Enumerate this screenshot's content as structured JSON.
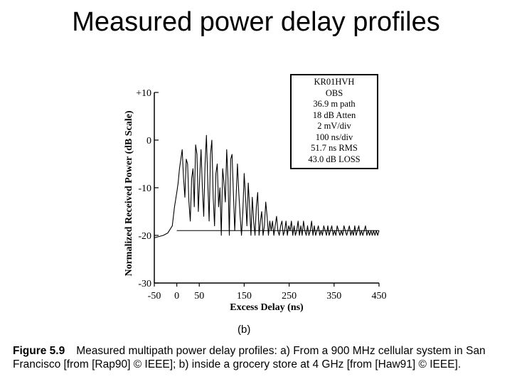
{
  "slide": {
    "title": "Measured power delay profiles"
  },
  "chart_data": {
    "type": "line",
    "xlabel": "Excess Delay (ns)",
    "ylabel": "Normalized Received Power (dB Scale)",
    "xlim": [
      -50,
      450
    ],
    "ylim": [
      -30,
      10
    ],
    "x_ticks": [
      {
        "value": -50,
        "label": "-50"
      },
      {
        "value": 0,
        "label": "0"
      },
      {
        "value": 50,
        "label": "50"
      },
      {
        "value": 150,
        "label": "150"
      },
      {
        "value": 250,
        "label": "250"
      },
      {
        "value": 350,
        "label": "350"
      },
      {
        "value": 450,
        "label": "450"
      }
    ],
    "y_ticks": [
      {
        "value": 10,
        "label": "+10"
      },
      {
        "value": 0,
        "label": "0"
      },
      {
        "value": -10,
        "label": "-10"
      },
      {
        "value": -20,
        "label": "-20"
      },
      {
        "value": -30,
        "label": "-30"
      }
    ],
    "threshold_db": -19,
    "series": [
      {
        "x": [
          -50,
          -30,
          -20,
          -10,
          -5,
          0,
          3,
          6,
          9,
          12,
          15,
          18,
          21,
          24,
          27,
          30,
          33,
          36,
          39,
          42,
          45,
          48,
          51,
          54,
          57,
          60,
          63,
          66,
          69,
          72,
          75,
          78,
          81,
          84,
          87,
          90,
          93,
          96,
          99,
          102,
          105,
          108,
          111,
          114,
          117,
          120,
          123,
          126,
          129,
          132,
          135,
          138,
          141,
          144,
          147,
          150,
          153,
          156,
          159,
          162,
          165,
          168,
          171,
          174,
          177,
          180,
          183,
          186,
          189,
          192,
          195,
          198,
          201,
          204,
          207,
          210,
          213,
          216,
          219,
          222,
          225,
          228,
          231,
          234,
          237,
          240,
          243,
          246,
          249,
          252,
          255,
          258,
          261,
          264,
          267,
          270,
          273,
          276,
          279,
          282,
          285,
          288,
          291,
          294,
          297,
          300,
          303,
          306,
          309,
          312,
          315,
          318,
          321,
          324,
          327,
          330,
          333,
          336,
          339,
          342,
          345,
          348,
          351,
          354,
          357,
          360,
          363,
          366,
          369,
          372,
          375,
          378,
          381,
          384,
          387,
          390,
          393,
          396,
          399,
          402,
          405,
          408,
          411,
          414,
          417,
          420,
          423,
          426,
          429,
          432,
          435,
          438,
          441,
          444,
          447,
          450
        ],
        "y": [
          -20.5,
          -20,
          -19.5,
          -18,
          -14,
          -11,
          -9,
          -6,
          -4,
          -2,
          -8,
          -12,
          -4,
          -5,
          -13,
          -17,
          -8,
          -6,
          -14,
          -1,
          -3,
          -15,
          -8,
          -2,
          -10,
          -16,
          -5,
          1,
          -9,
          -17,
          -3,
          0,
          -12,
          -18,
          -7,
          -5,
          -14,
          -10,
          -20,
          -6,
          -9,
          -13,
          -2,
          -8,
          -20,
          -4,
          -3,
          -11,
          -19,
          -12,
          -5,
          -11,
          -16,
          -20,
          -15,
          -7,
          -12,
          -18,
          -9,
          -14,
          -20,
          -12,
          -17,
          -20,
          -14,
          -11,
          -20,
          -17,
          -15,
          -20,
          -18,
          -13,
          -16,
          -20,
          -17,
          -19,
          -17,
          -20,
          -18,
          -16,
          -19,
          -20,
          -18,
          -17,
          -20,
          -19,
          -17,
          -20,
          -18,
          -19,
          -17,
          -20,
          -18,
          -20,
          -19,
          -17,
          -20,
          -18,
          -20,
          -17,
          -19,
          -20,
          -18,
          -20,
          -19,
          -17,
          -20,
          -18,
          -20,
          -19,
          -18,
          -20,
          -19,
          -20,
          -18,
          -19,
          -20,
          -18,
          -20,
          -19,
          -18,
          -20,
          -19,
          -20,
          -18,
          -19,
          -20,
          -19,
          -20,
          -18,
          -19,
          -20,
          -19,
          -18,
          -20,
          -19,
          -20,
          -18,
          -20,
          -19,
          -18,
          -20,
          -19,
          -20,
          -19,
          -18,
          -20,
          -19,
          -20,
          -19,
          -20,
          -19,
          -20,
          -19,
          -20,
          -19
        ]
      }
    ],
    "legend_lines": [
      "KR01HVH",
      "OBS",
      "36.9 m path",
      "18 dB Atten",
      "2 mV/div",
      "100 ns/div",
      "51.7 ns RMS",
      "43.0 dB LOSS"
    ],
    "legend_position": "top-right",
    "panel_label": "(b)",
    "grid": false
  },
  "caption": {
    "figure_label": "Figure 5.9",
    "text": "Measured multipath power delay profiles: a) From a 900 MHz cellular system in San Francisco [from [Rap90] © IEEE]; b) inside a grocery store at 4 GHz [from [Haw91] © IEEE]."
  }
}
